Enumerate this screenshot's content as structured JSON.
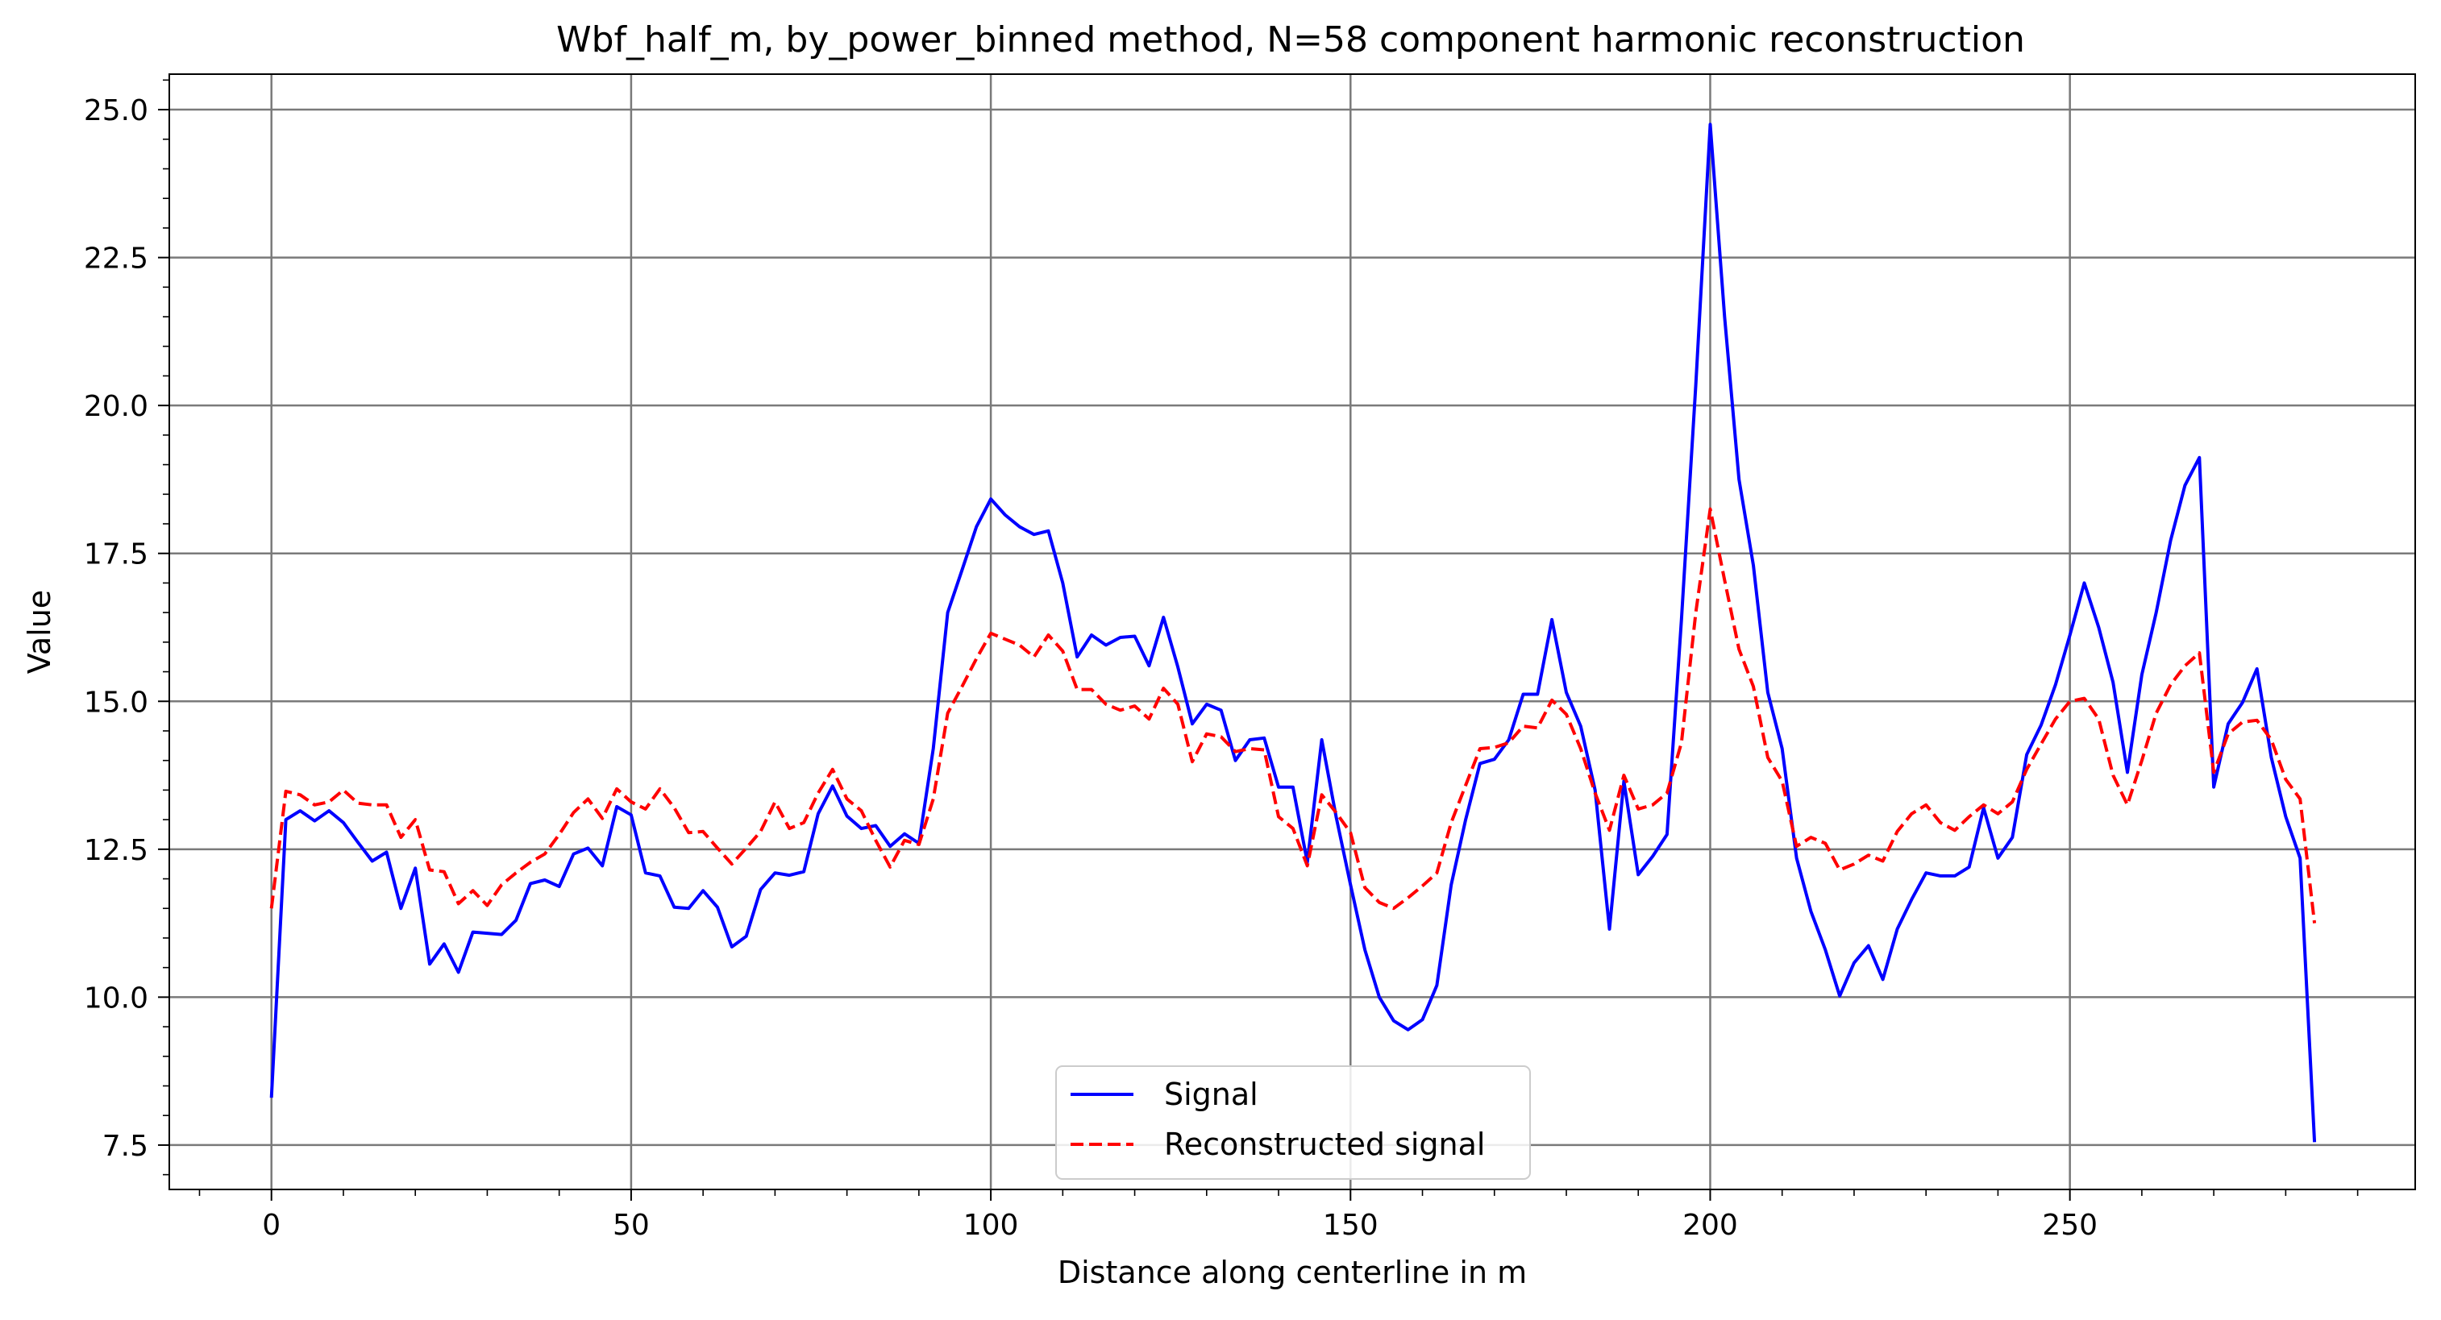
{
  "chart_data": {
    "type": "line",
    "title": "Wbf_half_m, by_power_binned method, N=58 component harmonic reconstruction",
    "xlabel": "Distance along centerline in m",
    "ylabel": "Value",
    "xlim": [
      -14.2,
      298.0
    ],
    "ylim": [
      6.75,
      25.6
    ],
    "x_ticks": [
      0,
      50,
      100,
      150,
      200,
      250
    ],
    "x_tick_labels": [
      "0",
      "50",
      "100",
      "150",
      "200",
      "250"
    ],
    "y_ticks": [
      7.5,
      10.0,
      12.5,
      15.0,
      17.5,
      20.0,
      22.5,
      25.0
    ],
    "y_tick_labels": [
      "7.5",
      "10.0",
      "12.5",
      "15.0",
      "17.5",
      "20.0",
      "22.5",
      "25.0"
    ],
    "x_minor_step": 10,
    "y_minor_step": 0.5,
    "grid": true,
    "legend": "bottom-center",
    "x": [
      0,
      2,
      4,
      6,
      8,
      10,
      12,
      14,
      16,
      18,
      20,
      22,
      24,
      26,
      28,
      30,
      32,
      34,
      36,
      38,
      40,
      42,
      44,
      46,
      48,
      50,
      52,
      54,
      56,
      58,
      60,
      62,
      64,
      66,
      68,
      70,
      72,
      74,
      76,
      78,
      80,
      82,
      84,
      86,
      88,
      90,
      92,
      94,
      96,
      98,
      100,
      102,
      104,
      106,
      108,
      110,
      112,
      114,
      116,
      118,
      120,
      122,
      124,
      126,
      128,
      130,
      132,
      134,
      136,
      138,
      140,
      142,
      144,
      146,
      148,
      150,
      152,
      154,
      156,
      158,
      160,
      162,
      164,
      166,
      168,
      170,
      172,
      174,
      176,
      178,
      180,
      182,
      184,
      186,
      188,
      190,
      192,
      194,
      196,
      198,
      200,
      202,
      204,
      206,
      208,
      210,
      212,
      214,
      216,
      218,
      220,
      222,
      224,
      226,
      228,
      230,
      232,
      234,
      236,
      238,
      240,
      242,
      244,
      246,
      248,
      250,
      252,
      254,
      256,
      258,
      260,
      262,
      264,
      266,
      268,
      270,
      272,
      274,
      276,
      278,
      280,
      282,
      284
    ],
    "series": [
      {
        "name": "Signal",
        "color": "#0000ff",
        "style": "solid",
        "values": [
          8.3,
          13.0,
          13.15,
          12.98,
          13.15,
          12.95,
          12.62,
          12.3,
          12.45,
          11.5,
          12.18,
          10.56,
          10.9,
          10.42,
          11.1,
          11.08,
          11.06,
          11.3,
          11.92,
          11.98,
          11.87,
          12.42,
          12.52,
          12.22,
          13.22,
          13.08,
          12.1,
          12.05,
          11.52,
          11.5,
          11.8,
          11.52,
          10.85,
          11.03,
          11.82,
          12.1,
          12.06,
          12.12,
          13.1,
          13.57,
          13.06,
          12.85,
          12.9,
          12.55,
          12.76,
          12.6,
          14.2,
          16.5,
          17.22,
          17.95,
          18.42,
          18.15,
          17.95,
          17.82,
          17.88,
          17.0,
          15.75,
          16.12,
          15.95,
          16.08,
          16.1,
          15.6,
          16.42,
          15.58,
          14.62,
          14.95,
          14.85,
          14.0,
          14.35,
          14.38,
          13.55,
          13.55,
          12.28,
          14.35,
          13.05,
          11.9,
          10.8,
          10.0,
          9.6,
          9.45,
          9.62,
          10.2,
          11.9,
          13.0,
          13.95,
          14.02,
          14.35,
          15.12,
          15.12,
          16.38,
          15.15,
          14.58,
          13.5,
          11.15,
          13.65,
          12.07,
          12.38,
          12.75,
          16.38,
          20.35,
          24.75,
          21.5,
          18.75,
          17.3,
          15.15,
          14.2,
          12.35,
          11.45,
          10.8,
          10.02,
          10.58,
          10.87,
          10.3,
          11.15,
          11.65,
          12.1,
          12.05,
          12.05,
          12.2,
          13.2,
          12.35,
          12.7,
          14.1,
          14.6,
          15.28,
          16.12,
          17.0,
          16.25,
          15.32,
          13.8,
          15.45,
          16.5,
          17.72,
          18.65,
          19.12,
          13.55,
          14.62,
          14.98,
          15.55,
          14.05,
          13.05,
          12.35,
          7.55
        ]
      },
      {
        "name": "Reconstructed signal",
        "color": "#ff0000",
        "style": "dashed",
        "values": [
          11.5,
          13.48,
          13.42,
          13.25,
          13.3,
          13.5,
          13.28,
          13.25,
          13.25,
          12.7,
          13.0,
          12.15,
          12.12,
          11.58,
          11.8,
          11.55,
          11.9,
          12.1,
          12.28,
          12.42,
          12.75,
          13.12,
          13.35,
          13.02,
          13.52,
          13.3,
          13.18,
          13.52,
          13.2,
          12.78,
          12.8,
          12.52,
          12.25,
          12.52,
          12.8,
          13.3,
          12.85,
          12.95,
          13.45,
          13.85,
          13.35,
          13.15,
          12.65,
          12.2,
          12.65,
          12.58,
          13.35,
          14.8,
          15.25,
          15.72,
          16.15,
          16.05,
          15.95,
          15.75,
          16.12,
          15.85,
          15.2,
          15.2,
          14.95,
          14.85,
          14.92,
          14.7,
          15.22,
          14.95,
          13.98,
          14.45,
          14.4,
          14.15,
          14.2,
          14.18,
          13.05,
          12.85,
          12.22,
          13.42,
          13.12,
          12.78,
          11.85,
          11.6,
          11.5,
          11.68,
          11.88,
          12.1,
          12.95,
          13.58,
          14.2,
          14.22,
          14.3,
          14.58,
          14.55,
          15.02,
          14.78,
          14.2,
          13.45,
          12.82,
          13.75,
          13.18,
          13.25,
          13.45,
          14.3,
          16.5,
          18.25,
          17.05,
          15.88,
          15.25,
          14.05,
          13.65,
          12.55,
          12.7,
          12.6,
          12.15,
          12.25,
          12.4,
          12.3,
          12.8,
          13.1,
          13.25,
          12.95,
          12.82,
          13.05,
          13.25,
          13.1,
          13.3,
          13.85,
          14.28,
          14.7,
          15.0,
          15.05,
          14.7,
          13.75,
          13.25,
          14.0,
          14.8,
          15.28,
          15.6,
          15.82,
          13.8,
          14.45,
          14.65,
          14.68,
          14.35,
          13.68,
          13.35,
          11.25
        ]
      }
    ]
  }
}
